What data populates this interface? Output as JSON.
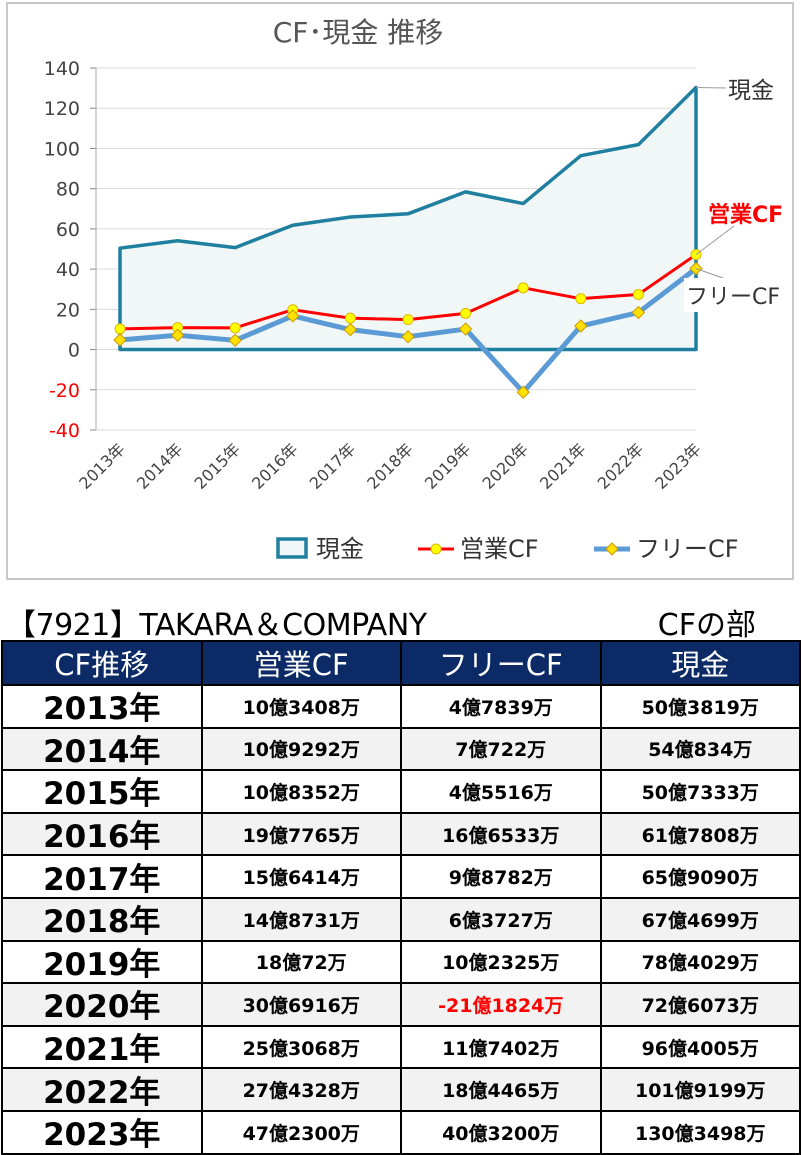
{
  "chart_data": {
    "type": "line",
    "title": "CF･現金 推移",
    "categories": [
      "2013年",
      "2014年",
      "2015年",
      "2016年",
      "2017年",
      "2018年",
      "2019年",
      "2020年",
      "2021年",
      "2022年",
      "2023年"
    ],
    "ylim": [
      -40,
      140
    ],
    "yticks": [
      140,
      120,
      100,
      80,
      60,
      40,
      20,
      0,
      -20,
      -40
    ],
    "grid": true,
    "legend_position": "bottom",
    "series": [
      {
        "name": "現金",
        "kind": "area",
        "color": "#1f7f9f",
        "values": [
          50.4,
          54.1,
          50.7,
          61.8,
          65.9,
          67.5,
          78.4,
          72.6,
          96.4,
          101.9,
          130.3
        ]
      },
      {
        "name": "営業CF",
        "kind": "line",
        "color": "#ff0000",
        "values": [
          10.3,
          10.9,
          10.8,
          19.8,
          15.6,
          14.9,
          18.0,
          30.7,
          25.3,
          27.4,
          47.2
        ]
      },
      {
        "name": "フリーCF",
        "kind": "line",
        "color": "#5b9bd5",
        "values": [
          4.8,
          7.1,
          4.6,
          16.7,
          9.9,
          6.4,
          10.2,
          -21.2,
          11.7,
          18.4,
          40.3
        ]
      }
    ]
  },
  "heading": {
    "company": "【7921】TAKARA＆COMPANY",
    "section": "CFの部"
  },
  "table": {
    "headers": [
      "CF推移",
      "営業CF",
      "フリーCF",
      "現金"
    ],
    "rows": [
      {
        "year": "2013年",
        "op": "10億3408万",
        "free": "4億7839万",
        "cash": "50億3819万"
      },
      {
        "year": "2014年",
        "op": "10億9292万",
        "free": "7億722万",
        "cash": "54億834万"
      },
      {
        "year": "2015年",
        "op": "10億8352万",
        "free": "4億5516万",
        "cash": "50億7333万"
      },
      {
        "year": "2016年",
        "op": "19億7765万",
        "free": "16億6533万",
        "cash": "61億7808万"
      },
      {
        "year": "2017年",
        "op": "15億6414万",
        "free": "9億8782万",
        "cash": "65億9090万"
      },
      {
        "year": "2018年",
        "op": "14億8731万",
        "free": "6億3727万",
        "cash": "67億4699万"
      },
      {
        "year": "2019年",
        "op": "18億72万",
        "free": "10億2325万",
        "cash": "78億4029万"
      },
      {
        "year": "2020年",
        "op": "30億6916万",
        "free": "-21億1824万",
        "cash": "72億6073万"
      },
      {
        "year": "2021年",
        "op": "25億3068万",
        "free": "11億7402万",
        "cash": "96億4005万"
      },
      {
        "year": "2022年",
        "op": "27億4328万",
        "free": "18億4465万",
        "cash": "101億9199万"
      },
      {
        "year": "2023年",
        "op": "47億2300万",
        "free": "40億3200万",
        "cash": "130億3498万"
      }
    ]
  }
}
